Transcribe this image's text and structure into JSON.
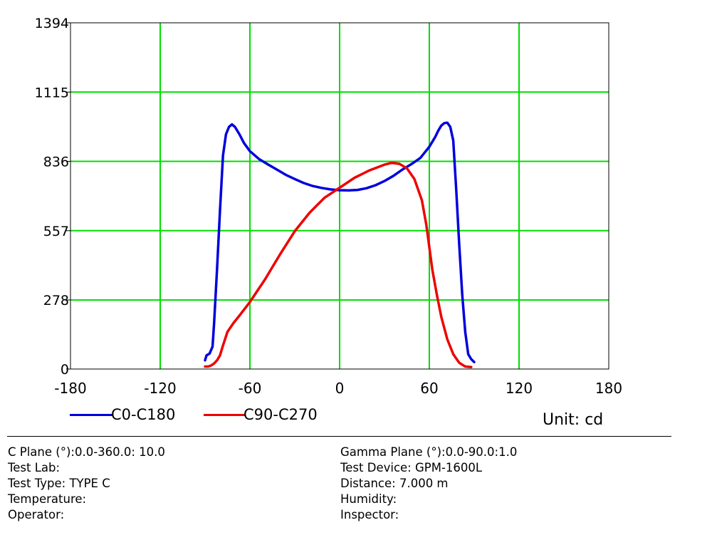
{
  "chart_data": {
    "type": "line",
    "xlim": [
      -180,
      180
    ],
    "ylim": [
      0,
      1394
    ],
    "x_ticks": [
      "-180",
      "-120",
      "-60",
      "0",
      "60",
      "120",
      "180"
    ],
    "y_ticks": [
      "0",
      "278",
      "557",
      "836",
      "1115",
      "1394"
    ],
    "grid": true,
    "grid_color": "#00dd00",
    "legend_position": "bottom-left",
    "series": [
      {
        "name": "C0-C180",
        "color": "#0000dd",
        "points": [
          [
            -90,
            35
          ],
          [
            -89,
            55
          ],
          [
            -87,
            62
          ],
          [
            -85,
            90
          ],
          [
            -84,
            180
          ],
          [
            -82,
            400
          ],
          [
            -80,
            640
          ],
          [
            -78,
            860
          ],
          [
            -76,
            945
          ],
          [
            -74,
            975
          ],
          [
            -72,
            985
          ],
          [
            -70,
            975
          ],
          [
            -67,
            945
          ],
          [
            -64,
            910
          ],
          [
            -60,
            877
          ],
          [
            -54,
            846
          ],
          [
            -48,
            824
          ],
          [
            -42,
            803
          ],
          [
            -36,
            782
          ],
          [
            -30,
            765
          ],
          [
            -24,
            749
          ],
          [
            -18,
            737
          ],
          [
            -12,
            729
          ],
          [
            -6,
            723
          ],
          [
            0,
            720
          ],
          [
            6,
            719
          ],
          [
            12,
            721
          ],
          [
            18,
            728
          ],
          [
            24,
            740
          ],
          [
            30,
            757
          ],
          [
            36,
            778
          ],
          [
            42,
            803
          ],
          [
            48,
            825
          ],
          [
            54,
            850
          ],
          [
            60,
            895
          ],
          [
            64,
            935
          ],
          [
            66,
            960
          ],
          [
            68,
            980
          ],
          [
            70,
            990
          ],
          [
            72,
            992
          ],
          [
            74,
            975
          ],
          [
            76,
            920
          ],
          [
            78,
            720
          ],
          [
            80,
            500
          ],
          [
            82,
            300
          ],
          [
            84,
            150
          ],
          [
            86,
            60
          ],
          [
            88,
            40
          ],
          [
            90,
            28
          ]
        ]
      },
      {
        "name": "C90-C270",
        "color": "#ee0000",
        "points": [
          [
            -90,
            10
          ],
          [
            -88,
            10
          ],
          [
            -86,
            14
          ],
          [
            -84,
            22
          ],
          [
            -82,
            35
          ],
          [
            -80,
            55
          ],
          [
            -78,
            95
          ],
          [
            -75,
            150
          ],
          [
            -71,
            185
          ],
          [
            -67,
            215
          ],
          [
            -60,
            270
          ],
          [
            -50,
            360
          ],
          [
            -40,
            460
          ],
          [
            -30,
            555
          ],
          [
            -20,
            630
          ],
          [
            -10,
            690
          ],
          [
            0,
            730
          ],
          [
            10,
            770
          ],
          [
            20,
            800
          ],
          [
            30,
            823
          ],
          [
            35,
            830
          ],
          [
            40,
            826
          ],
          [
            45,
            808
          ],
          [
            50,
            765
          ],
          [
            55,
            680
          ],
          [
            58,
            580
          ],
          [
            60,
            490
          ],
          [
            62,
            400
          ],
          [
            65,
            300
          ],
          [
            68,
            210
          ],
          [
            72,
            120
          ],
          [
            76,
            60
          ],
          [
            80,
            25
          ],
          [
            84,
            10
          ],
          [
            88,
            8
          ]
        ]
      }
    ]
  },
  "unit_label": "Unit: cd",
  "info_left": [
    "C Plane (°):0.0-360.0: 10.0",
    "Test Lab:",
    "Test Type: TYPE C",
    "Temperature:",
    "Operator:"
  ],
  "info_right": [
    "Gamma Plane (°):0.0-90.0:1.0",
    "Test Device: GPM-1600L",
    "Distance: 7.000 m",
    "Humidity:",
    "Inspector:"
  ]
}
